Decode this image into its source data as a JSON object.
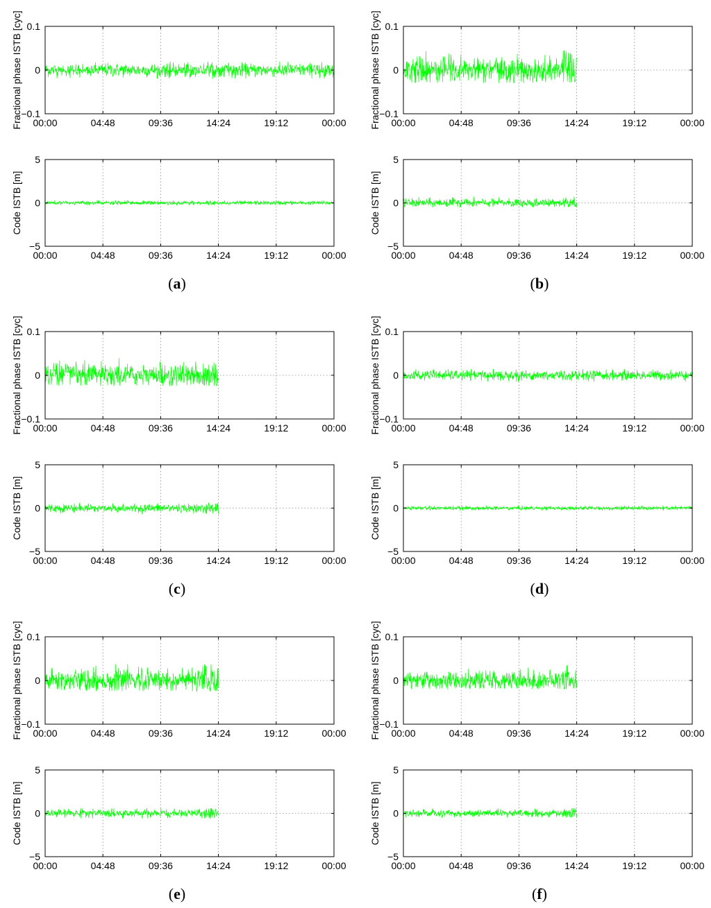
{
  "colors": {
    "series": "#00ff00",
    "axis": "#000000",
    "grid": "#8a8a8a"
  },
  "x_tick_labels": [
    "00:00",
    "04:48",
    "09:36",
    "14:24",
    "19:12",
    "00:00"
  ],
  "panels": [
    {
      "id": "a",
      "caption_open": "(",
      "caption_letter": "a",
      "caption_close": ")",
      "data_end_hour": 24.0
    },
    {
      "id": "b",
      "caption_open": "(",
      "caption_letter": "b",
      "caption_close": ")",
      "data_end_hour": 14.4
    },
    {
      "id": "c",
      "caption_open": "(",
      "caption_letter": "c",
      "caption_close": ")",
      "data_end_hour": 14.4
    },
    {
      "id": "d",
      "caption_open": "(",
      "caption_letter": "d",
      "caption_close": ")",
      "data_end_hour": 24.0
    },
    {
      "id": "e",
      "caption_open": "(",
      "caption_letter": "e",
      "caption_close": ")",
      "data_end_hour": 14.4
    },
    {
      "id": "f",
      "caption_open": "(",
      "caption_letter": "f",
      "caption_close": ")",
      "data_end_hour": 14.4
    }
  ],
  "chart_data": [
    {
      "panel": "a",
      "subplot": "phase",
      "type": "line",
      "ylabel": "Fractional phase ISTB [cyc]",
      "ylim": [
        -0.1,
        0.1
      ],
      "yticks": [
        "0.1",
        "0",
        "−0.1"
      ],
      "y_tick_values": [
        0.1,
        0,
        -0.1
      ],
      "xlim_hours": [
        0,
        24
      ],
      "x_tick_hours": [
        0,
        4.8,
        9.6,
        14.4,
        19.2,
        24
      ],
      "grid": true,
      "series": [
        {
          "x_range_hours": [
            0,
            24
          ],
          "y_mean": 0.0,
          "y_range": [
            -0.02,
            0.02
          ]
        }
      ]
    },
    {
      "panel": "a",
      "subplot": "code",
      "type": "line",
      "ylabel": "Code ISTB [m]",
      "ylim": [
        -5,
        5
      ],
      "yticks": [
        "5",
        "0",
        "−5"
      ],
      "y_tick_values": [
        5,
        0,
        -5
      ],
      "xlim_hours": [
        0,
        24
      ],
      "x_tick_hours": [
        0,
        4.8,
        9.6,
        14.4,
        19.2,
        24
      ],
      "grid": true,
      "series": [
        {
          "x_range_hours": [
            0,
            24
          ],
          "y_mean": 0.0,
          "y_range": [
            -0.3,
            0.3
          ]
        }
      ]
    },
    {
      "panel": "b",
      "subplot": "phase",
      "type": "line",
      "ylabel": "Fractional phase ISTB [cyc]",
      "ylim": [
        -0.1,
        0.1
      ],
      "yticks": [
        "0.1",
        "0",
        "−0.1"
      ],
      "y_tick_values": [
        0.1,
        0,
        -0.1
      ],
      "xlim_hours": [
        0,
        24
      ],
      "x_tick_hours": [
        0,
        4.8,
        9.6,
        14.4,
        19.2,
        24
      ],
      "grid": true,
      "series": [
        {
          "x_range_hours": [
            0,
            14.4
          ],
          "y_mean": 0.0,
          "y_range": [
            -0.03,
            0.045
          ]
        }
      ]
    },
    {
      "panel": "b",
      "subplot": "code",
      "type": "line",
      "ylabel": "Code ISTB [m]",
      "ylim": [
        -5,
        5
      ],
      "yticks": [
        "5",
        "0",
        "−5"
      ],
      "y_tick_values": [
        5,
        0,
        -5
      ],
      "xlim_hours": [
        0,
        24
      ],
      "x_tick_hours": [
        0,
        4.8,
        9.6,
        14.4,
        19.2,
        24
      ],
      "grid": true,
      "series": [
        {
          "x_range_hours": [
            0,
            14.4
          ],
          "y_mean": 0.0,
          "y_range": [
            -0.5,
            0.8
          ]
        }
      ]
    },
    {
      "panel": "c",
      "subplot": "phase",
      "type": "line",
      "ylabel": "Fractional phase ISTB [cyc]",
      "ylim": [
        -0.1,
        0.1
      ],
      "yticks": [
        "0.1",
        "0",
        "−0.1"
      ],
      "y_tick_values": [
        0.1,
        0,
        -0.1
      ],
      "xlim_hours": [
        0,
        24
      ],
      "x_tick_hours": [
        0,
        4.8,
        9.6,
        14.4,
        19.2,
        24
      ],
      "grid": true,
      "series": [
        {
          "x_range_hours": [
            0,
            14.4
          ],
          "y_mean": 0.0,
          "y_range": [
            -0.025,
            0.04
          ]
        }
      ]
    },
    {
      "panel": "c",
      "subplot": "code",
      "type": "line",
      "ylabel": "Code ISTB [m]",
      "ylim": [
        -5,
        5
      ],
      "yticks": [
        "5",
        "0",
        "−5"
      ],
      "y_tick_values": [
        5,
        0,
        -5
      ],
      "xlim_hours": [
        0,
        24
      ],
      "x_tick_hours": [
        0,
        4.8,
        9.6,
        14.4,
        19.2,
        24
      ],
      "grid": true,
      "series": [
        {
          "x_range_hours": [
            0,
            14.4
          ],
          "y_mean": 0.0,
          "y_range": [
            -0.7,
            0.6
          ]
        }
      ]
    },
    {
      "panel": "d",
      "subplot": "phase",
      "type": "line",
      "ylabel": "Fractional phase ISTB [cyc]",
      "ylim": [
        -0.1,
        0.1
      ],
      "yticks": [
        "0.1",
        "0",
        "−0.1"
      ],
      "y_tick_values": [
        0.1,
        0,
        -0.1
      ],
      "xlim_hours": [
        0,
        24
      ],
      "x_tick_hours": [
        0,
        4.8,
        9.6,
        14.4,
        19.2,
        24
      ],
      "grid": true,
      "series": [
        {
          "x_range_hours": [
            0,
            24
          ],
          "y_mean": 0.0,
          "y_range": [
            -0.015,
            0.015
          ]
        }
      ]
    },
    {
      "panel": "d",
      "subplot": "code",
      "type": "line",
      "ylabel": "Code ISTB [m]",
      "ylim": [
        -5,
        5
      ],
      "yticks": [
        "5",
        "0",
        "−5"
      ],
      "y_tick_values": [
        5,
        0,
        -5
      ],
      "xlim_hours": [
        0,
        24
      ],
      "x_tick_hours": [
        0,
        4.8,
        9.6,
        14.4,
        19.2,
        24
      ],
      "grid": true,
      "series": [
        {
          "x_range_hours": [
            0,
            24
          ],
          "y_mean": 0.0,
          "y_range": [
            -0.3,
            0.3
          ]
        }
      ]
    },
    {
      "panel": "e",
      "subplot": "phase",
      "type": "line",
      "ylabel": "Fractional phase ISTB [cyc]",
      "ylim": [
        -0.1,
        0.1
      ],
      "yticks": [
        "0.1",
        "0",
        "−0.1"
      ],
      "y_tick_values": [
        0.1,
        0,
        -0.1
      ],
      "xlim_hours": [
        0,
        24
      ],
      "x_tick_hours": [
        0,
        4.8,
        9.6,
        14.4,
        19.2,
        24
      ],
      "grid": true,
      "series": [
        {
          "x_range_hours": [
            0,
            14.4
          ],
          "y_mean": 0.0,
          "y_range": [
            -0.025,
            0.04
          ]
        }
      ]
    },
    {
      "panel": "e",
      "subplot": "code",
      "type": "line",
      "ylabel": "Code ISTB [m]",
      "ylim": [
        -5,
        5
      ],
      "yticks": [
        "5",
        "0",
        "−5"
      ],
      "y_tick_values": [
        5,
        0,
        -5
      ],
      "xlim_hours": [
        0,
        24
      ],
      "x_tick_hours": [
        0,
        4.8,
        9.6,
        14.4,
        19.2,
        24
      ],
      "grid": true,
      "series": [
        {
          "x_range_hours": [
            0,
            14.4
          ],
          "y_mean": 0.0,
          "y_range": [
            -0.6,
            0.6
          ]
        }
      ]
    },
    {
      "panel": "f",
      "subplot": "phase",
      "type": "line",
      "ylabel": "Fractional phase ISTB [cyc]",
      "ylim": [
        -0.1,
        0.1
      ],
      "yticks": [
        "0.1",
        "0",
        "−0.1"
      ],
      "y_tick_values": [
        0.1,
        0,
        -0.1
      ],
      "xlim_hours": [
        0,
        24
      ],
      "x_tick_hours": [
        0,
        4.8,
        9.6,
        14.4,
        19.2,
        24
      ],
      "grid": true,
      "series": [
        {
          "x_range_hours": [
            0,
            14.4
          ],
          "y_mean": 0.0,
          "y_range": [
            -0.02,
            0.035
          ]
        }
      ]
    },
    {
      "panel": "f",
      "subplot": "code",
      "type": "line",
      "ylabel": "Code ISTB [m]",
      "ylim": [
        -5,
        5
      ],
      "yticks": [
        "5",
        "0",
        "−5"
      ],
      "y_tick_values": [
        5,
        0,
        -5
      ],
      "xlim_hours": [
        0,
        24
      ],
      "x_tick_hours": [
        0,
        4.8,
        9.6,
        14.4,
        19.2,
        24
      ],
      "grid": true,
      "series": [
        {
          "x_range_hours": [
            0,
            14.4
          ],
          "y_mean": 0.0,
          "y_range": [
            -0.5,
            0.6
          ]
        }
      ]
    }
  ]
}
